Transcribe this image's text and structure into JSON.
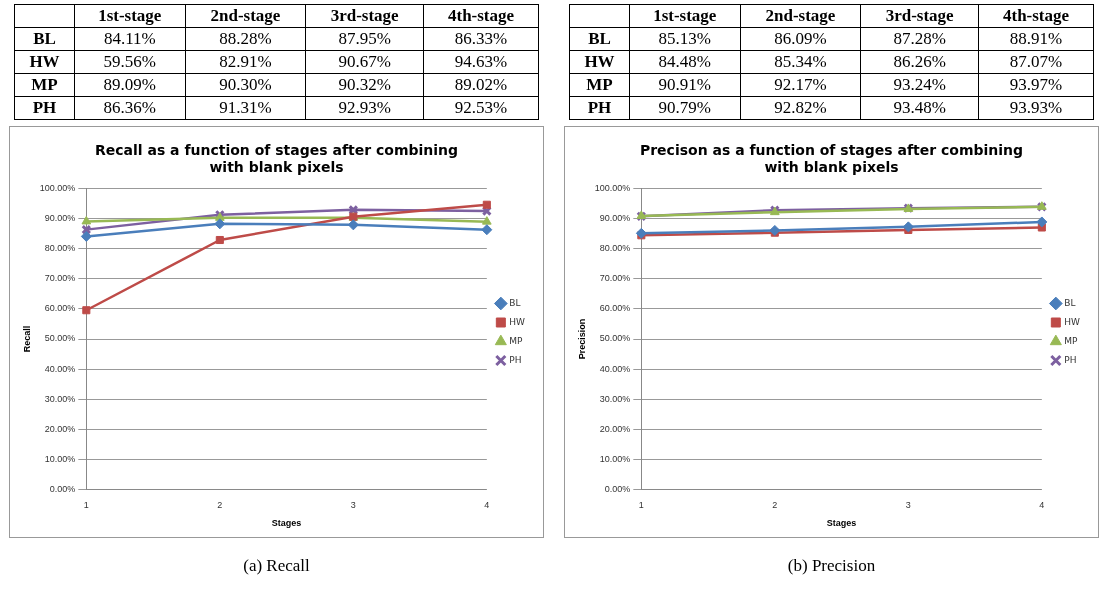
{
  "chart_data": [
    {
      "type": "line",
      "title": "Recall as a function of stages after combining with blank pixels",
      "xlabel": "Stages",
      "ylabel": "Recall",
      "categories": [
        "1",
        "2",
        "3",
        "4"
      ],
      "series": [
        {
          "name": "BL",
          "color": "#4a7ebb",
          "marker": "diamond",
          "values": [
            84.11,
            88.28,
            87.95,
            86.33
          ],
          "value_labels": [
            "84.11%",
            "88.28%",
            "87.95%",
            "86.33%"
          ]
        },
        {
          "name": "HW",
          "color": "#be4b48",
          "marker": "square",
          "values": [
            59.56,
            82.91,
            90.67,
            94.63
          ],
          "value_labels": [
            "59.56%",
            "82.91%",
            "90.67%",
            "94.63%"
          ]
        },
        {
          "name": "MP",
          "color": "#98b954",
          "marker": "triangle",
          "values": [
            89.09,
            90.3,
            90.32,
            89.02
          ],
          "value_labels": [
            "89.09%",
            "90.30%",
            "90.32%",
            "89.02%"
          ]
        },
        {
          "name": "PH",
          "color": "#7d60a0",
          "marker": "cross",
          "values": [
            86.36,
            91.31,
            92.93,
            92.53
          ],
          "value_labels": [
            "86.36%",
            "91.31%",
            "92.93%",
            "92.53%"
          ]
        }
      ],
      "ylim": [
        0,
        100
      ],
      "yticks": [
        {
          "value": 0,
          "label": "0.00%"
        },
        {
          "value": 10,
          "label": "10.00%"
        },
        {
          "value": 20,
          "label": "20.00%"
        },
        {
          "value": 30,
          "label": "30.00%"
        },
        {
          "value": 40,
          "label": "40.00%"
        },
        {
          "value": 50,
          "label": "50.00%"
        },
        {
          "value": 60,
          "label": "60.00%"
        },
        {
          "value": 70,
          "label": "70.00%"
        },
        {
          "value": 80,
          "label": "80.00%"
        },
        {
          "value": 90,
          "label": "90.00%"
        },
        {
          "value": 100,
          "label": "100.00%"
        }
      ],
      "grid": "y",
      "legend": "right",
      "annotations": [
        "1st-stage",
        "2nd-stage",
        "3rd-stage",
        "4th-stage",
        "(a) Recall"
      ]
    },
    {
      "type": "line",
      "title": "Precison as a function of stages after combining with blank pixels",
      "xlabel": "Stages",
      "ylabel": "Precision",
      "categories": [
        "1",
        "2",
        "3",
        "4"
      ],
      "series": [
        {
          "name": "BL",
          "color": "#4a7ebb",
          "marker": "diamond",
          "values": [
            85.13,
            86.09,
            87.28,
            88.91
          ],
          "value_labels": [
            "85.13%",
            "86.09%",
            "87.28%",
            "88.91%"
          ]
        },
        {
          "name": "HW",
          "color": "#be4b48",
          "marker": "square",
          "values": [
            84.48,
            85.34,
            86.26,
            87.07
          ],
          "value_labels": [
            "84.48%",
            "85.34%",
            "86.26%",
            "87.07%"
          ]
        },
        {
          "name": "MP",
          "color": "#98b954",
          "marker": "triangle",
          "values": [
            90.91,
            92.17,
            93.24,
            93.97
          ],
          "value_labels": [
            "90.91%",
            "92.17%",
            "93.24%",
            "93.97%"
          ]
        },
        {
          "name": "PH",
          "color": "#7d60a0",
          "marker": "cross",
          "values": [
            90.79,
            92.82,
            93.48,
            93.93
          ],
          "value_labels": [
            "90.79%",
            "92.82%",
            "93.48%",
            "93.93%"
          ]
        }
      ],
      "ylim": [
        0,
        100
      ],
      "yticks": [
        {
          "value": 0,
          "label": "0.00%"
        },
        {
          "value": 10,
          "label": "10.00%"
        },
        {
          "value": 20,
          "label": "20.00%"
        },
        {
          "value": 30,
          "label": "30.00%"
        },
        {
          "value": 40,
          "label": "40.00%"
        },
        {
          "value": 50,
          "label": "50.00%"
        },
        {
          "value": 60,
          "label": "60.00%"
        },
        {
          "value": 70,
          "label": "70.00%"
        },
        {
          "value": 80,
          "label": "80.00%"
        },
        {
          "value": 90,
          "label": "90.00%"
        },
        {
          "value": 100,
          "label": "100.00%"
        }
      ],
      "grid": "y",
      "legend": "right",
      "annotations": [
        "1st-stage",
        "2nd-stage",
        "3rd-stage",
        "4th-stage",
        "(b) Precision"
      ]
    }
  ]
}
